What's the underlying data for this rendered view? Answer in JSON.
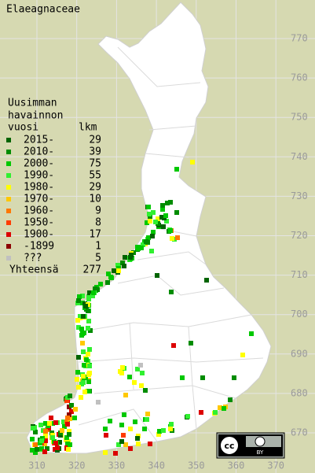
{
  "title": "Elaeagnaceae",
  "legend": {
    "heading": [
      "Uusimman",
      "havainnon",
      "vuosi"
    ],
    "count_heading": "lkm",
    "rows": [
      {
        "label": "2015-",
        "count": 29,
        "color": "#006400"
      },
      {
        "label": "2010-",
        "count": 39,
        "color": "#008c00"
      },
      {
        "label": "2000-",
        "count": 75,
        "color": "#00c800"
      },
      {
        "label": "1990-",
        "count": 55,
        "color": "#30f030"
      },
      {
        "label": "1980-",
        "count": 29,
        "color": "#ffff00"
      },
      {
        "label": "1970-",
        "count": 10,
        "color": "#ffc800"
      },
      {
        "label": "1960-",
        "count": 9,
        "color": "#ff7800"
      },
      {
        "label": "1950-",
        "count": 8,
        "color": "#ff3c00"
      },
      {
        "label": "1900-",
        "count": 17,
        "color": "#dc0000"
      },
      {
        "label": "-1899",
        "count": 1,
        "color": "#8c0000"
      },
      {
        "label": "???",
        "count": 5,
        "color": "#c0c0c0"
      }
    ],
    "total_label": "Yhteensä",
    "total": 277
  },
  "axes": {
    "y_labels": [
      770,
      760,
      750,
      740,
      730,
      720,
      710,
      700,
      690,
      680,
      670
    ],
    "x_labels": [
      310,
      320,
      330,
      340,
      350,
      360,
      370
    ]
  },
  "license": {
    "logo": "cc",
    "badge": "BY"
  }
}
